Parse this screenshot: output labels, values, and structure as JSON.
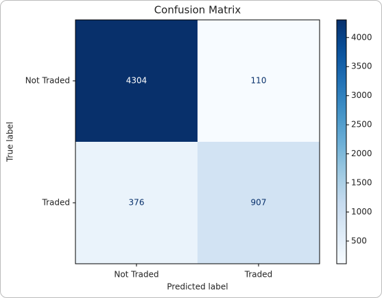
{
  "chart_data": {
    "type": "heatmap",
    "title": "Confusion Matrix",
    "x_label": "Predicted label",
    "y_label": "True label",
    "x_categories": [
      "Not Traded",
      "Traded"
    ],
    "y_categories": [
      "Not Traded",
      "Traded"
    ],
    "values": [
      [
        4304,
        110
      ],
      [
        376,
        907
      ]
    ],
    "colormap": "Blues",
    "colorbar_lim": [
      110,
      4304
    ],
    "colorbar_ticks": [
      500,
      1000,
      1500,
      2000,
      2500,
      3000,
      3500,
      4000
    ]
  }
}
